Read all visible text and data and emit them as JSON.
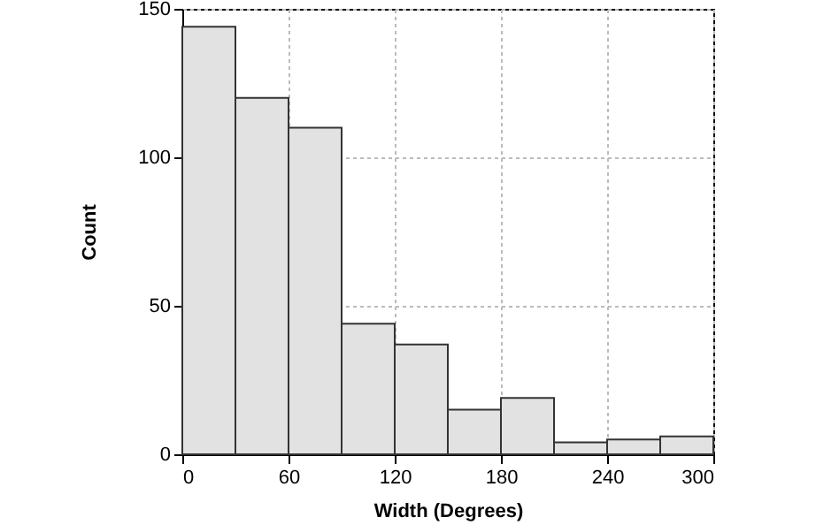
{
  "chart_data": {
    "type": "histogram",
    "xlabel": "Width (Degrees)",
    "ylabel": "Count",
    "bins": [
      0,
      30,
      60,
      90,
      120,
      150,
      180,
      210,
      240,
      270,
      300
    ],
    "values": [
      144,
      120,
      110,
      44,
      37,
      15,
      19,
      4,
      5,
      6
    ],
    "color": "#e2e2e2",
    "xlim": [
      0,
      300
    ],
    "xticks": [
      0,
      60,
      120,
      180,
      240,
      300
    ],
    "ylim": [
      0,
      150
    ],
    "yticks": [
      0,
      50,
      100,
      150
    ],
    "grid": true
  }
}
